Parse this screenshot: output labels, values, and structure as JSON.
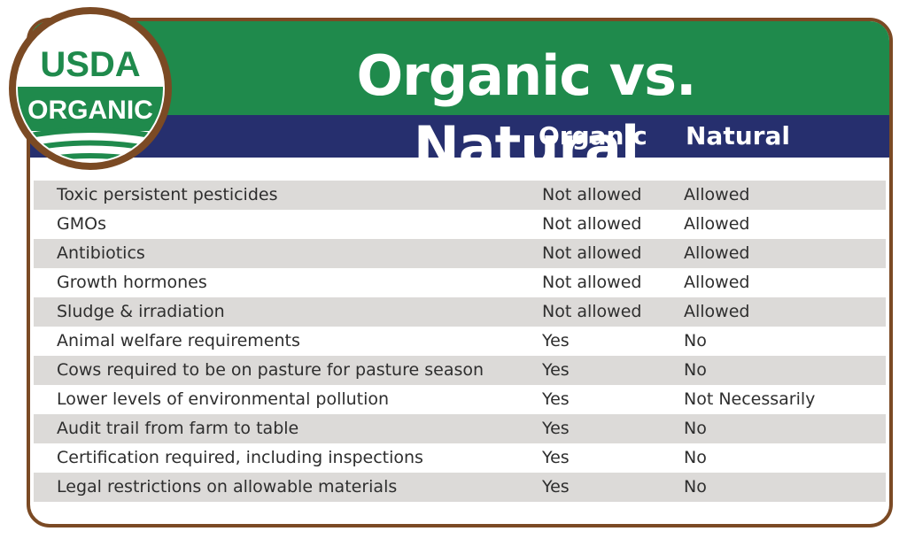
{
  "logo": {
    "top": "USDA",
    "bottom": "ORGANIC"
  },
  "title": "Organic vs. Natural",
  "table": {
    "header": [
      "Organic",
      "Natural"
    ],
    "rows": [
      [
        "Toxic persistent pesticides",
        "Not allowed",
        "Allowed"
      ],
      [
        "GMOs",
        "Not allowed",
        "Allowed"
      ],
      [
        "Antibiotics",
        "Not allowed",
        "Allowed"
      ],
      [
        "Growth hormones",
        "Not allowed",
        "Allowed"
      ],
      [
        "Sludge & irradiation",
        "Not allowed",
        "Allowed"
      ],
      [
        "Animal welfare requirements",
        "Yes",
        "No"
      ],
      [
        "Cows required to be on pasture for pasture season",
        "Yes",
        "No"
      ],
      [
        "Lower levels of environmental pollution",
        "Yes",
        "Not Necessarily"
      ],
      [
        "Audit trail from farm to table",
        "Yes",
        "No"
      ],
      [
        "Certification required, including inspections",
        "Yes",
        "No"
      ],
      [
        "Legal restrictions on allowable materials",
        "Yes",
        "No"
      ]
    ]
  }
}
